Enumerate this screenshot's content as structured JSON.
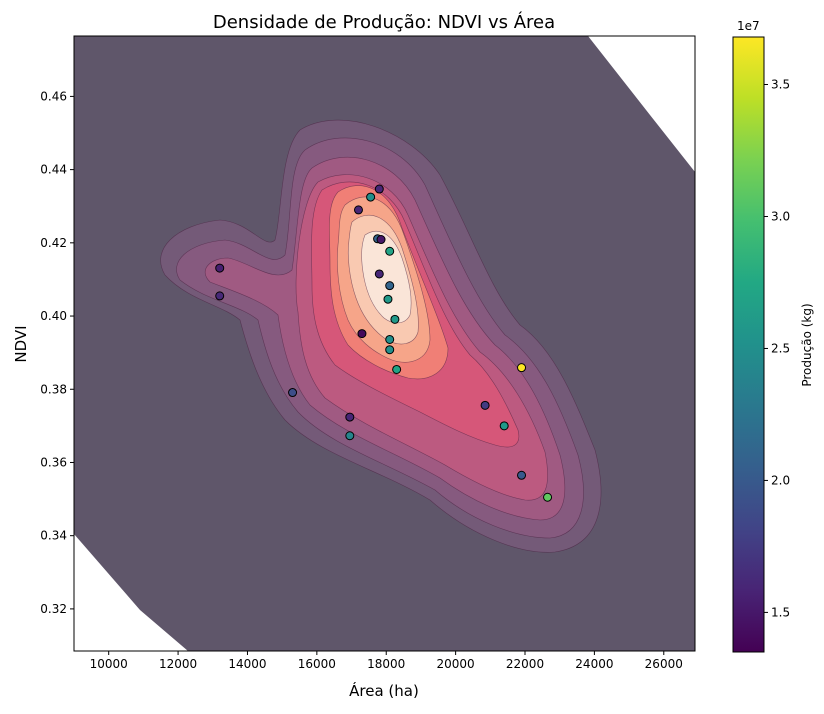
{
  "chart_data": {
    "type": "scatter",
    "title": "Densidade de Produção: NDVI vs Área",
    "xlabel": "Área (ha)",
    "ylabel": "NDVI",
    "xlim": [
      9000,
      26900
    ],
    "ylim": [
      0.3085,
      0.4765
    ],
    "xticks": [
      10000,
      12000,
      14000,
      16000,
      18000,
      20000,
      22000,
      24000,
      26000
    ],
    "xtick_labels": [
      "10000",
      "12000",
      "14000",
      "16000",
      "18000",
      "20000",
      "22000",
      "24000",
      "26000"
    ],
    "yticks": [
      0.32,
      0.34,
      0.36,
      0.38,
      0.4,
      0.42,
      0.44,
      0.46
    ],
    "ytick_labels": [
      "0.32",
      "0.34",
      "0.36",
      "0.38",
      "0.40",
      "0.42",
      "0.44",
      "0.46"
    ],
    "grid": false,
    "background": "kde-density-contours",
    "colorbar": {
      "label": "Produção (kg)",
      "range": [
        13500000,
        36800000
      ],
      "ticks": [
        15000000,
        20000000,
        25000000,
        30000000,
        35000000
      ],
      "tick_labels": [
        "1.5",
        "2.0",
        "2.5",
        "3.0",
        "3.5"
      ],
      "offset_text": "1e7",
      "colormap": "viridis"
    },
    "points": [
      {
        "x": 13200,
        "y": 0.4131,
        "z": 15500000
      },
      {
        "x": 13200,
        "y": 0.4055,
        "z": 16200000
      },
      {
        "x": 15300,
        "y": 0.3791,
        "z": 19000000
      },
      {
        "x": 16950,
        "y": 0.3724,
        "z": 16000000
      },
      {
        "x": 16950,
        "y": 0.3673,
        "z": 24000000
      },
      {
        "x": 17200,
        "y": 0.429,
        "z": 16000000
      },
      {
        "x": 17300,
        "y": 0.3952,
        "z": 14000000
      },
      {
        "x": 17550,
        "y": 0.4325,
        "z": 25000000
      },
      {
        "x": 17800,
        "y": 0.4347,
        "z": 16000000
      },
      {
        "x": 17750,
        "y": 0.4211,
        "z": 21000000
      },
      {
        "x": 17850,
        "y": 0.4209,
        "z": 15000000
      },
      {
        "x": 17800,
        "y": 0.4115,
        "z": 16000000
      },
      {
        "x": 18100,
        "y": 0.4177,
        "z": 27000000
      },
      {
        "x": 18100,
        "y": 0.4083,
        "z": 21000000
      },
      {
        "x": 18050,
        "y": 0.4046,
        "z": 26000000
      },
      {
        "x": 18250,
        "y": 0.3991,
        "z": 26000000
      },
      {
        "x": 18100,
        "y": 0.3936,
        "z": 25000000
      },
      {
        "x": 18100,
        "y": 0.3908,
        "z": 25000000
      },
      {
        "x": 18300,
        "y": 0.3854,
        "z": 27000000
      },
      {
        "x": 20850,
        "y": 0.3756,
        "z": 17500000
      },
      {
        "x": 21400,
        "y": 0.37,
        "z": 26000000
      },
      {
        "x": 21900,
        "y": 0.3859,
        "z": 36800000
      },
      {
        "x": 21900,
        "y": 0.3565,
        "z": 20000000
      },
      {
        "x": 22650,
        "y": 0.3505,
        "z": 31000000
      }
    ]
  }
}
